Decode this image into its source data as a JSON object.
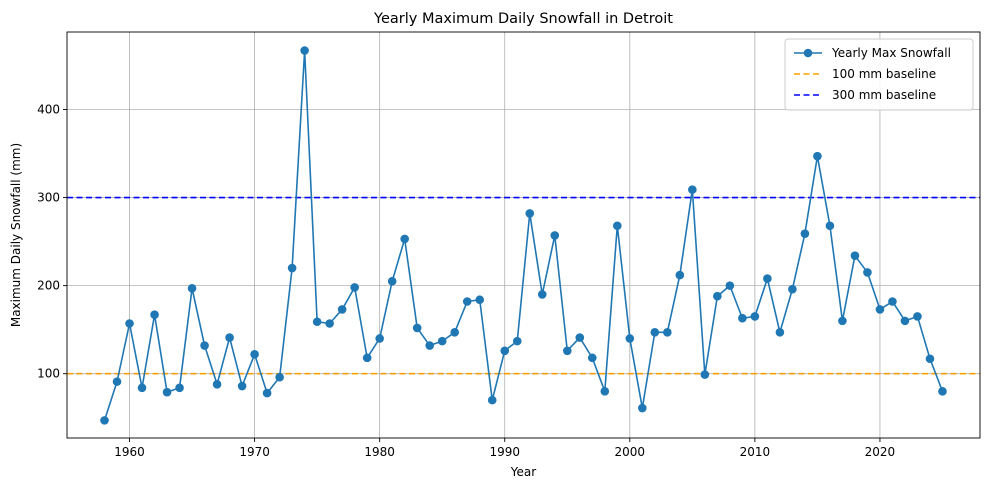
{
  "chart_data": {
    "type": "line",
    "title": "Yearly Maximum Daily Snowfall in Detroit",
    "xlabel": "Year",
    "ylabel": "Maximum Daily Snowfall (mm)",
    "xlim": [
      1955,
      2028
    ],
    "ylim": [
      27,
      488
    ],
    "xticks": [
      1960,
      1970,
      1980,
      1990,
      2000,
      2010,
      2020
    ],
    "yticks": [
      100,
      200,
      300,
      400
    ],
    "grid": true,
    "legend_position": "top-right",
    "series": [
      {
        "name": "Yearly Max Snowfall",
        "type": "line-marker",
        "color": "#1f77b4",
        "x": [
          1958,
          1959,
          1960,
          1961,
          1962,
          1963,
          1964,
          1965,
          1966,
          1967,
          1968,
          1969,
          1970,
          1971,
          1972,
          1973,
          1974,
          1975,
          1976,
          1977,
          1978,
          1979,
          1980,
          1981,
          1982,
          1983,
          1984,
          1985,
          1986,
          1987,
          1988,
          1989,
          1990,
          1991,
          1992,
          1993,
          1994,
          1995,
          1996,
          1997,
          1998,
          1999,
          2000,
          2001,
          2002,
          2003,
          2004,
          2005,
          2006,
          2007,
          2008,
          2009,
          2010,
          2011,
          2012,
          2013,
          2014,
          2015,
          2016,
          2017,
          2018,
          2019,
          2020,
          2021,
          2022,
          2023,
          2024,
          2025
        ],
        "y": [
          47,
          91,
          157,
          84,
          167,
          79,
          84,
          197,
          132,
          88,
          141,
          86,
          122,
          78,
          96,
          220,
          467,
          159,
          157,
          173,
          198,
          118,
          140,
          205,
          253,
          152,
          132,
          137,
          147,
          182,
          184,
          70,
          126,
          137,
          282,
          190,
          257,
          126,
          141,
          118,
          80,
          268,
          140,
          61,
          147,
          147,
          212,
          309,
          99,
          188,
          200,
          163,
          165,
          208,
          147,
          196,
          259,
          347,
          268,
          160,
          234,
          215,
          173,
          182,
          160,
          165,
          117,
          80
        ]
      }
    ],
    "reference_lines": [
      {
        "name": "100 mm baseline",
        "y": 100,
        "color": "#ff9f00",
        "style": "dashed"
      },
      {
        "name": "300 mm baseline",
        "y": 300,
        "color": "#0000ff",
        "style": "dashed"
      }
    ]
  }
}
